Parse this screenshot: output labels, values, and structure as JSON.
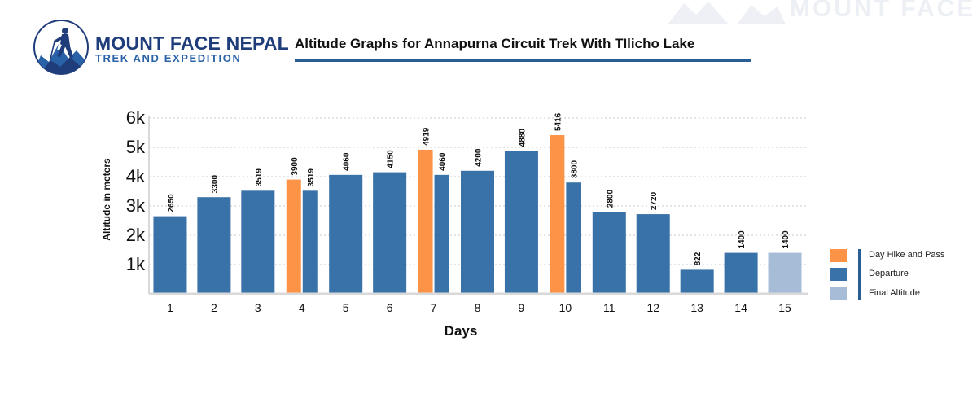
{
  "brand": {
    "name": "MOUNT FACE NEPAL",
    "subtitle": "TREK AND EXPEDITION"
  },
  "watermark_text": "MOUNT FACE",
  "colors": {
    "day_hike_and_pass": "#fd9346",
    "departure": "#3872a8",
    "final_altitude": "#a7bcd7",
    "title_rule": "#2b5d95",
    "brand_dark": "#1f3d7a",
    "brand_light": "#2a62a8"
  },
  "chart_data": {
    "type": "bar",
    "title": "Altitude Graphs for Annapurna Circuit Trek With TIlicho Lake",
    "xlabel": "Days",
    "ylabel": "Altitude in meters",
    "ylim": [
      0,
      6000
    ],
    "y_ticks": [
      {
        "value": 1000,
        "label": "1k"
      },
      {
        "value": 2000,
        "label": "2k"
      },
      {
        "value": 3000,
        "label": "3k"
      },
      {
        "value": 4000,
        "label": "4k"
      },
      {
        "value": 5000,
        "label": "5k"
      },
      {
        "value": 6000,
        "label": "6k"
      }
    ],
    "grid": "horizontal dotted",
    "legend_position": "right",
    "legend": [
      {
        "key": "day_hike_and_pass",
        "label": "Day Hike and Pass"
      },
      {
        "key": "departure",
        "label": "Departure"
      },
      {
        "key": "final_altitude",
        "label": "Final  Altitude"
      }
    ],
    "days": [
      {
        "day": "1",
        "bars": [
          {
            "series": "departure",
            "value": 2650,
            "label": "2650"
          }
        ]
      },
      {
        "day": "2",
        "bars": [
          {
            "series": "departure",
            "value": 3300,
            "label": "3300"
          }
        ]
      },
      {
        "day": "3",
        "bars": [
          {
            "series": "departure",
            "value": 3519,
            "label": "3519"
          }
        ]
      },
      {
        "day": "4",
        "bars": [
          {
            "series": "day_hike_and_pass",
            "value": 3900,
            "label": "3900"
          },
          {
            "series": "departure",
            "value": 3519,
            "label": "3519"
          }
        ]
      },
      {
        "day": "5",
        "bars": [
          {
            "series": "departure",
            "value": 4060,
            "label": "4060"
          }
        ]
      },
      {
        "day": "6",
        "bars": [
          {
            "series": "departure",
            "value": 4150,
            "label": "4150"
          }
        ]
      },
      {
        "day": "7",
        "bars": [
          {
            "series": "day_hike_and_pass",
            "value": 4919,
            "label": "4919"
          },
          {
            "series": "departure",
            "value": 4060,
            "label": "4060"
          }
        ]
      },
      {
        "day": "8",
        "bars": [
          {
            "series": "departure",
            "value": 4200,
            "label": "4200"
          }
        ]
      },
      {
        "day": "9",
        "bars": [
          {
            "series": "departure",
            "value": 4880,
            "label": "4880"
          }
        ]
      },
      {
        "day": "10",
        "bars": [
          {
            "series": "day_hike_and_pass",
            "value": 5416,
            "label": "5416"
          },
          {
            "series": "departure",
            "value": 3800,
            "label": "3800"
          }
        ]
      },
      {
        "day": "11",
        "bars": [
          {
            "series": "departure",
            "value": 2800,
            "label": "2800"
          }
        ]
      },
      {
        "day": "12",
        "bars": [
          {
            "series": "departure",
            "value": 2720,
            "label": "2720"
          }
        ]
      },
      {
        "day": "13",
        "bars": [
          {
            "series": "departure",
            "value": 822,
            "label": "822"
          }
        ]
      },
      {
        "day": "14",
        "bars": [
          {
            "series": "departure",
            "value": 1400,
            "label": "1400"
          }
        ]
      },
      {
        "day": "15",
        "bars": [
          {
            "series": "final_altitude",
            "value": 1400,
            "label": "1400"
          }
        ]
      }
    ]
  }
}
